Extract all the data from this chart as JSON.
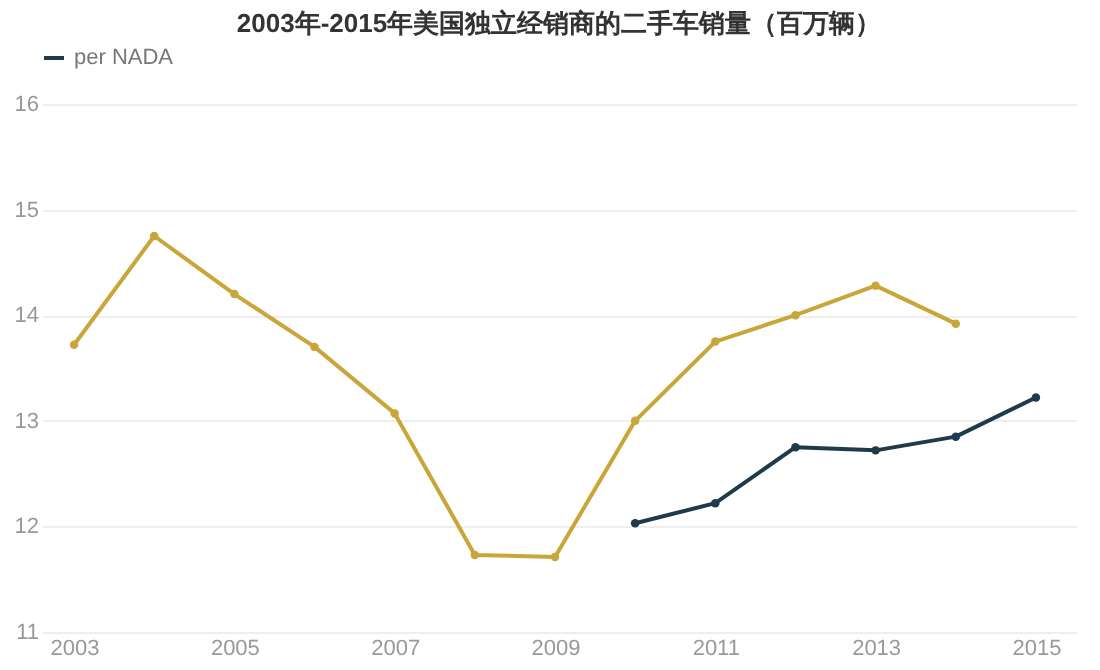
{
  "chart_data": {
    "type": "line",
    "title": "2003年-2015年美国独立经销商的二手车销量（百万辆）",
    "x": [
      2003,
      2004,
      2005,
      2006,
      2007,
      2008,
      2009,
      2010,
      2011,
      2012,
      2013,
      2014,
      2015
    ],
    "series": [
      {
        "color": "#c9a63a",
        "values": [
          13.72,
          14.75,
          14.2,
          13.7,
          13.07,
          11.73,
          11.71,
          13.0,
          13.75,
          14.0,
          14.28,
          13.92,
          null
        ]
      },
      {
        "name": "per NADA",
        "color": "#1f3a4a",
        "values": [
          null,
          null,
          null,
          null,
          null,
          null,
          null,
          12.03,
          12.22,
          12.75,
          12.72,
          12.85,
          13.22
        ]
      }
    ],
    "xlim": [
      2002.6,
      2015.5
    ],
    "xticks": [
      2003,
      2005,
      2007,
      2009,
      2011,
      2013,
      2015
    ],
    "ylim": [
      11,
      16
    ],
    "yticks": [
      11,
      12,
      13,
      14,
      15,
      16
    ],
    "grid": "y",
    "legend": "top",
    "marker": "circle",
    "line_style": "solid"
  }
}
